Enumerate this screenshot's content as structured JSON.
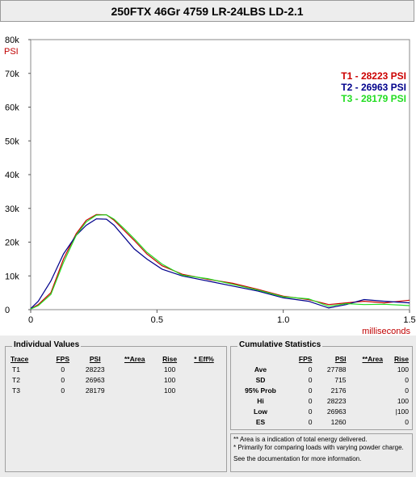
{
  "title": "250FTX 46Gr 4759 LR-24LBS LD-2.1",
  "chart_data": {
    "type": "line",
    "ylabel": "PSI",
    "xlabel": "milliseconds",
    "xlim": [
      0,
      1.5
    ],
    "ylim": [
      0,
      80000
    ],
    "x_ticks": [
      "0",
      "0.5",
      "1.0",
      "1.5"
    ],
    "y_ticks": [
      "0",
      "10k",
      "20k",
      "30k",
      "40k",
      "50k",
      "60k",
      "70k",
      "80k"
    ],
    "legend_position": "top-right",
    "series": [
      {
        "name": "T1 -  28223 PSI",
        "color": "#cc0000",
        "x": [
          0,
          0.03,
          0.08,
          0.13,
          0.18,
          0.22,
          0.26,
          0.3,
          0.33,
          0.37,
          0.41,
          0.46,
          0.52,
          0.6,
          0.7,
          0.8,
          0.9,
          1.0,
          1.1,
          1.18,
          1.25,
          1.32,
          1.4,
          1.5
        ],
        "values": [
          200,
          1500,
          5000,
          15000,
          22500,
          26500,
          28200,
          28100,
          26500,
          23500,
          20500,
          16500,
          13000,
          10500,
          9000,
          7800,
          6000,
          4000,
          3000,
          1500,
          2000,
          2500,
          2000,
          2800
        ]
      },
      {
        "name": "T2 -  26963 PSI",
        "color": "#00008b",
        "x": [
          0,
          0.03,
          0.08,
          0.13,
          0.18,
          0.22,
          0.26,
          0.3,
          0.33,
          0.37,
          0.41,
          0.46,
          0.52,
          0.6,
          0.7,
          0.8,
          0.9,
          1.0,
          1.1,
          1.18,
          1.25,
          1.32,
          1.4,
          1.5
        ],
        "values": [
          300,
          2500,
          8500,
          16500,
          22000,
          25000,
          26900,
          26800,
          25000,
          21500,
          18000,
          15000,
          12000,
          10000,
          8500,
          7000,
          5500,
          3500,
          2500,
          500,
          1500,
          3000,
          2500,
          2000
        ]
      },
      {
        "name": "T3 -  28179 PSI",
        "color": "#22dd22",
        "x": [
          0,
          0.03,
          0.08,
          0.13,
          0.18,
          0.22,
          0.26,
          0.3,
          0.33,
          0.37,
          0.41,
          0.46,
          0.52,
          0.6,
          0.7,
          0.8,
          0.9,
          1.0,
          1.1,
          1.18,
          1.25,
          1.32,
          1.4,
          1.5
        ],
        "values": [
          200,
          1200,
          4500,
          14000,
          22000,
          26000,
          28000,
          28100,
          26800,
          24000,
          21000,
          17000,
          13500,
          10200,
          9200,
          7500,
          5800,
          3800,
          3200,
          1000,
          1800,
          1500,
          1600,
          1200
        ]
      }
    ]
  },
  "individual_values": {
    "title": "Individual Values",
    "headers": [
      "Trace",
      "FPS",
      "PSI",
      "**Area",
      "Rise",
      "* Eff%"
    ],
    "rows": [
      [
        "T1",
        "0",
        "28223",
        "",
        "100",
        ""
      ],
      [
        "T2",
        "0",
        "26963",
        "",
        "100",
        ""
      ],
      [
        "T3",
        "0",
        "28179",
        "",
        "100",
        ""
      ]
    ]
  },
  "cumulative_statistics": {
    "title": "Cumulative Statistics",
    "headers": [
      "",
      "FPS",
      "PSI",
      "**Area",
      "Rise"
    ],
    "rows": [
      [
        "Ave",
        "0",
        "27788",
        "",
        "100"
      ],
      [
        "SD",
        "0",
        "715",
        "",
        "0"
      ],
      [
        "95% Prob",
        "0",
        "2176",
        "",
        "0"
      ],
      [
        "Hi",
        "0",
        "28223",
        "",
        "100"
      ],
      [
        "Low",
        "0",
        "26963",
        "",
        "|100"
      ],
      [
        "ES",
        "0",
        "1260",
        "",
        "0"
      ]
    ]
  },
  "notes": {
    "line1": "** Area is a indication of total energy delivered.",
    "line2": "* Primarily for comparing loads with varying powder charge.",
    "line3": "See the documentation for more information."
  }
}
